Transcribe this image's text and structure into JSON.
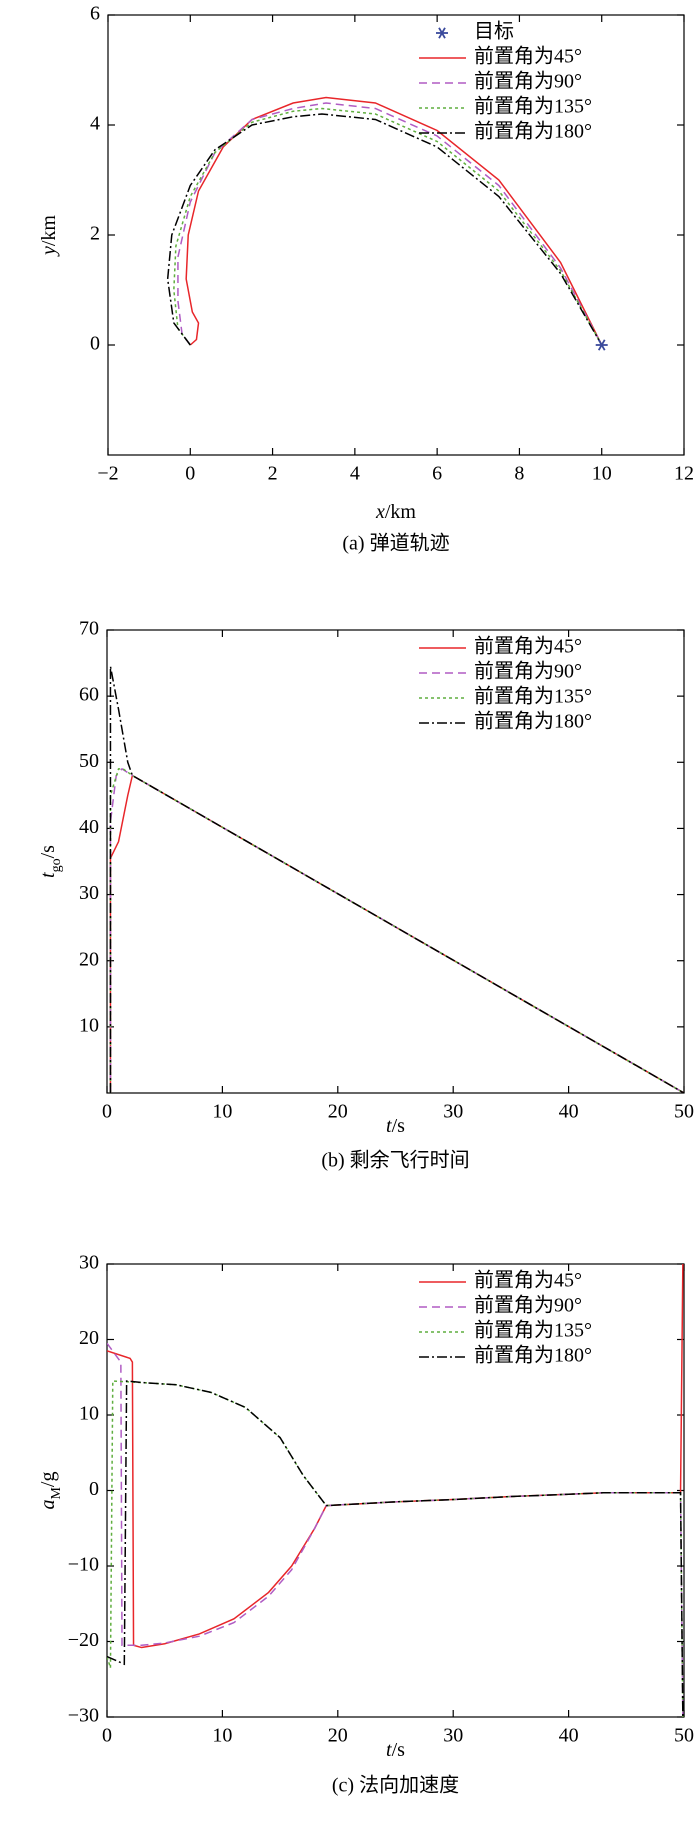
{
  "chart_data": [
    {
      "type": "line",
      "caption": "(a) 弹道轨迹",
      "xlabel": [
        "x",
        "/km"
      ],
      "ylabel": [
        "y",
        "/km"
      ],
      "xlim": [
        -2,
        12
      ],
      "xticks": [
        {
          "value": -2,
          "label": "−2"
        },
        0,
        2,
        4,
        6,
        8,
        10,
        12
      ],
      "ylim": [
        -2,
        6
      ],
      "yticks": [
        0,
        2,
        4,
        6
      ],
      "legend": "upper right",
      "series": [
        {
          "name": "目标",
          "color": "#3b4a9c",
          "marker": "asterisk",
          "x": [
            10
          ],
          "y": [
            0
          ]
        },
        {
          "name": "前置角为45°",
          "color": "#e8262a",
          "dash": "solid",
          "x": [
            0,
            0.15,
            0.2,
            0.05,
            -0.1,
            -0.05,
            0.2,
            0.8,
            1.5,
            2.5,
            3.3,
            4.5,
            6,
            7.5,
            9,
            10
          ],
          "y": [
            0,
            0.1,
            0.4,
            0.6,
            1.2,
            2,
            2.8,
            3.6,
            4.1,
            4.4,
            4.5,
            4.4,
            3.9,
            3,
            1.5,
            0
          ]
        },
        {
          "name": "前置角为90°",
          "color": "#b05cc4",
          "dash": "dashed",
          "x": [
            0,
            -0.2,
            -0.3,
            -0.3,
            0,
            0.6,
            1.5,
            2.5,
            3.3,
            4.5,
            6,
            7.5,
            9,
            10
          ],
          "y": [
            0,
            0.2,
            0.8,
            1.6,
            2.6,
            3.5,
            4.1,
            4.3,
            4.4,
            4.3,
            3.8,
            2.9,
            1.4,
            0
          ]
        },
        {
          "name": "前置角为135°",
          "color": "#5fae3e",
          "dash": "dotted",
          "x": [
            0,
            -0.3,
            -0.4,
            -0.35,
            0,
            0.6,
            1.5,
            2.5,
            3.2,
            4.5,
            6,
            7.5,
            9,
            10
          ],
          "y": [
            0,
            0.3,
            1,
            1.8,
            2.7,
            3.5,
            4.05,
            4.25,
            4.3,
            4.2,
            3.7,
            2.8,
            1.35,
            0
          ]
        },
        {
          "name": "前置角为180°",
          "color": "#000000",
          "dash": "dashdot",
          "x": [
            0,
            -0.4,
            -0.55,
            -0.45,
            0,
            0.6,
            1.5,
            2.5,
            3.2,
            4.5,
            6,
            7.5,
            9,
            10
          ],
          "y": [
            0,
            0.4,
            1.2,
            2,
            2.9,
            3.55,
            4.0,
            4.15,
            4.2,
            4.1,
            3.6,
            2.7,
            1.3,
            0
          ]
        }
      ]
    },
    {
      "type": "line",
      "caption": "(b) 剩余飞行时间",
      "xlabel": [
        "t",
        "/s"
      ],
      "ylabel": [
        "t",
        "go",
        "/s"
      ],
      "xlim": [
        0,
        50
      ],
      "xticks": [
        0,
        10,
        20,
        30,
        40,
        50
      ],
      "ylim": [
        0,
        70
      ],
      "yticks": [
        10,
        20,
        30,
        40,
        50,
        60,
        70
      ],
      "legend": "upper right",
      "series": [
        {
          "name": "前置角为45°",
          "color": "#e8262a",
          "dash": "solid",
          "x": [
            0.3,
            0.3,
            1,
            1.8,
            2.2,
            50
          ],
          "y": [
            0,
            35.5,
            38,
            45,
            48,
            0
          ]
        },
        {
          "name": "前置角为90°",
          "color": "#b05cc4",
          "dash": "dashed",
          "x": [
            0.3,
            0.3,
            0.8,
            1.3,
            2.2,
            50
          ],
          "y": [
            0,
            41,
            48,
            49,
            48,
            0
          ]
        },
        {
          "name": "前置角为135°",
          "color": "#5fae3e",
          "dash": "dotted",
          "x": [
            0.3,
            0.3,
            1,
            1.4,
            2.2,
            50
          ],
          "y": [
            0,
            45,
            49,
            49,
            48,
            0
          ]
        },
        {
          "name": "前置角为180°",
          "color": "#000000",
          "dash": "dashdot",
          "x": [
            0.3,
            0.3,
            1,
            1.8,
            2.2,
            50
          ],
          "y": [
            0,
            64.5,
            58,
            50,
            48,
            0
          ]
        }
      ]
    },
    {
      "type": "line",
      "caption": "(c) 法向加速度",
      "xlabel": [
        "t",
        "/s"
      ],
      "ylabel": [
        "a",
        "M",
        "/g"
      ],
      "xlim": [
        0,
        50
      ],
      "xticks": [
        0,
        10,
        20,
        30,
        40,
        50
      ],
      "ylim": [
        -30,
        30
      ],
      "yticks": [
        {
          "value": -30,
          "label": "−30"
        },
        {
          "value": -20,
          "label": "−20"
        },
        {
          "value": -10,
          "label": "−10"
        },
        0,
        10,
        20,
        30
      ],
      "legend": "upper right",
      "series": [
        {
          "name": "前置角为45°",
          "color": "#e8262a",
          "dash": "solid",
          "x": [
            0,
            2,
            2.2,
            2.3,
            3,
            5,
            8,
            11,
            14,
            16,
            18,
            19,
            25,
            30,
            35,
            40,
            43,
            49.7,
            49.9
          ],
          "y": [
            18.5,
            17.5,
            17,
            -20.5,
            -20.8,
            -20.3,
            -19,
            -17,
            -13.5,
            -10,
            -5,
            -2,
            -1.5,
            -1.2,
            -0.8,
            -0.5,
            -0.3,
            -0.3,
            30
          ]
        },
        {
          "name": "前置角为90°",
          "color": "#b05cc4",
          "dash": "dashed",
          "x": [
            0,
            1.2,
            1.3,
            3,
            5,
            8,
            11,
            14,
            16,
            18,
            19,
            25,
            30,
            35,
            40,
            43,
            49.7,
            49.9
          ],
          "y": [
            19.5,
            17,
            -20.5,
            -20.5,
            -20.2,
            -19.3,
            -17.5,
            -14,
            -10.5,
            -5,
            -2,
            -1.5,
            -1.2,
            -0.8,
            -0.5,
            -0.3,
            -0.3,
            -30
          ]
        },
        {
          "name": "前置角为135°",
          "color": "#5fae3e",
          "dash": "dotted",
          "x": [
            0,
            0.3,
            0.5,
            3,
            6,
            9,
            12,
            15,
            17,
            19,
            25,
            30,
            35,
            40,
            43,
            49.7,
            49.9
          ],
          "y": [
            -22,
            -23.5,
            14.5,
            14.3,
            14,
            13,
            11,
            7,
            2,
            -2,
            -1.5,
            -1.2,
            -0.8,
            -0.5,
            -0.3,
            -0.3,
            -30
          ]
        },
        {
          "name": "前置角为180°",
          "color": "#000000",
          "dash": "dashdot",
          "x": [
            0,
            1.5,
            1.7,
            3,
            6,
            9,
            12,
            15,
            17,
            19,
            25,
            30,
            35,
            40,
            43,
            49.7,
            49.9
          ],
          "y": [
            -22,
            -23,
            14.5,
            14.3,
            14,
            13,
            11,
            7,
            2,
            -2,
            -1.5,
            -1.2,
            -0.8,
            -0.5,
            -0.3,
            -0.3,
            -30
          ]
        }
      ]
    }
  ]
}
